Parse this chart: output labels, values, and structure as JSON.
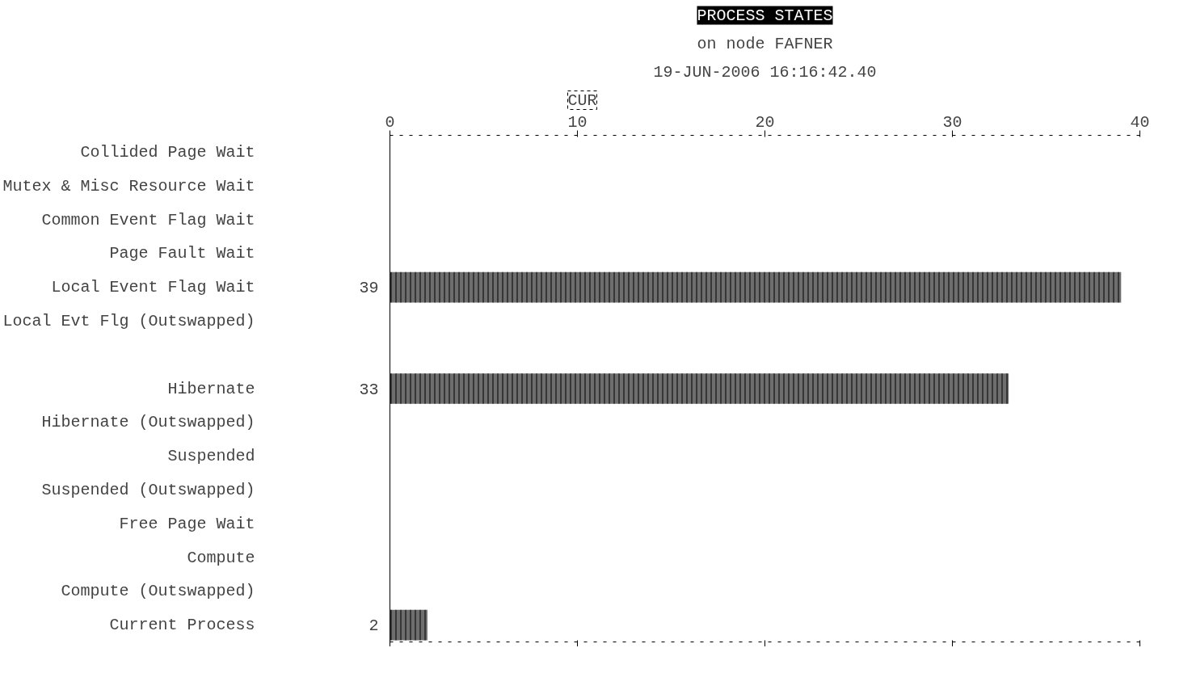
{
  "chart_data": {
    "type": "bar",
    "orientation": "horizontal",
    "title": "PROCESS STATES",
    "subtitle": "on node FAFNER",
    "annotations": [
      "19-JUN-2006 16:16:42.40",
      "CUR"
    ],
    "categories": [
      "Collided Page Wait",
      "Mutex & Misc Resource Wait",
      "Common Event Flag Wait",
      "Page Fault Wait",
      "Local Event Flag Wait",
      "Local Evt Flg (Outswapped)",
      null,
      "Hibernate",
      "Hibernate (Outswapped)",
      "Suspended",
      "Suspended (Outswapped)",
      "Free Page Wait",
      "Compute",
      "Compute (Outswapped)",
      "Current Process"
    ],
    "values": [
      0,
      0,
      0,
      0,
      39,
      0,
      null,
      33,
      0,
      0,
      0,
      0,
      0,
      0,
      2
    ],
    "value_labels": [
      null,
      null,
      null,
      null,
      "39",
      null,
      null,
      "33",
      null,
      null,
      null,
      null,
      null,
      null,
      "2"
    ],
    "color": "#6e6e6e",
    "xlim": [
      0,
      40
    ],
    "xticks": [
      0,
      10,
      20,
      30,
      40
    ],
    "grid": false
  }
}
